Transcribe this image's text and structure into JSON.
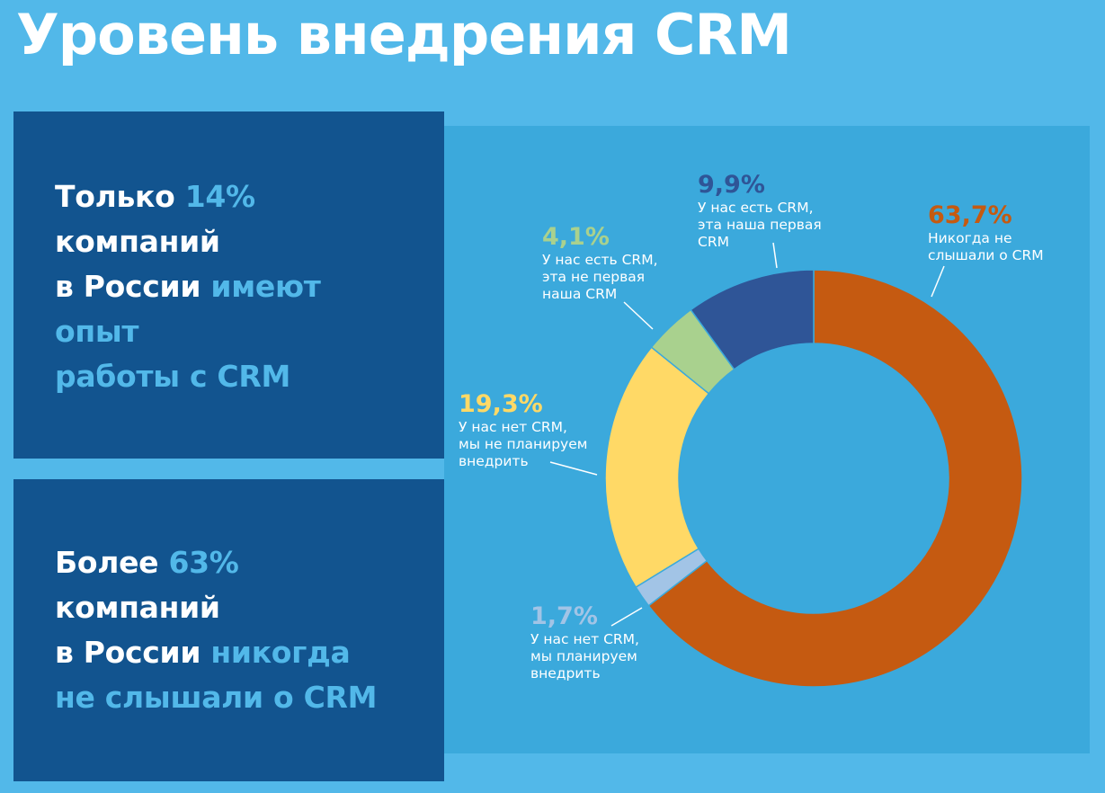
{
  "page": {
    "title": "Уровень внедрения CRM"
  },
  "box1": {
    "l1a": "Только ",
    "l1b": "14%",
    "l2": "компаний",
    "l3a": "в России ",
    "l3b": "имеют",
    "l4": "опыт",
    "l5": "работы с CRM"
  },
  "box2": {
    "l1a": "Более ",
    "l1b": "63%",
    "l2": "компаний",
    "l3a": "в России ",
    "l3b": "никогда",
    "l4": "не слышали о CRM"
  },
  "colors": {
    "background": "#52b8e9",
    "box": "#12548f",
    "panel": "#3ba9dc",
    "accent_text": "#52b8e9"
  },
  "chart_data": {
    "type": "pie",
    "donut": true,
    "slices": [
      {
        "value": 63.7,
        "label": "63,7%",
        "text": [
          "Никогда не",
          "слышали о CRM"
        ],
        "color": "#c55a11"
      },
      {
        "value": 1.7,
        "label": "1,7%",
        "text": [
          "У нас нет CRM,",
          "мы планируем",
          "внедрить"
        ],
        "color": "#a2c4e6"
      },
      {
        "value": 19.3,
        "label": "19,3%",
        "text": [
          "У нас нет CRM,",
          "мы не планируем",
          "внедрить"
        ],
        "color": "#ffd966"
      },
      {
        "value": 4.1,
        "label": "4,1%",
        "text": [
          "У нас есть CRM,",
          "эта не первая",
          "наша CRM"
        ],
        "color": "#a9d18e"
      },
      {
        "value": 9.9,
        "label": "9,9%",
        "text": [
          "У нас есть CRM,",
          "эта наша первая",
          "CRM"
        ],
        "color": "#2f5597"
      }
    ]
  }
}
